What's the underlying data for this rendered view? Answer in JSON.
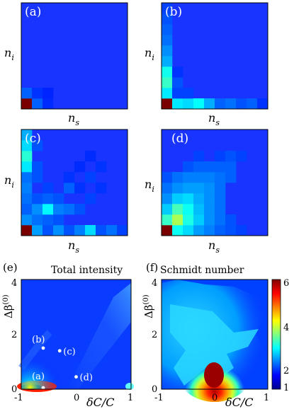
{
  "chart_data": [
    {
      "id": "a",
      "type": "heatmap",
      "tag": "(a)",
      "xlabel": "n",
      "xlabel_sub": "s",
      "ylabel": "n",
      "ylabel_sub": "i",
      "grid_size": 10,
      "cells": [
        {
          "row": 0,
          "col": 0,
          "value": 1.0
        },
        {
          "row": 0,
          "col": 1,
          "value": 0.12
        },
        {
          "row": 1,
          "col": 0,
          "value": 0.12
        },
        {
          "row": 1,
          "col": 1,
          "value": 0.06
        },
        {
          "row": 0,
          "col": 2,
          "value": 0.05
        },
        {
          "row": 1,
          "col": 2,
          "value": 0.04
        }
      ]
    },
    {
      "id": "b",
      "type": "heatmap",
      "tag": "(b)",
      "xlabel": "n",
      "xlabel_sub": "s",
      "ylabel": "n",
      "ylabel_sub": "i",
      "grid_size": 10,
      "cells": [
        {
          "row": 0,
          "col": 0,
          "value": 1.0
        },
        {
          "row": 0,
          "col": 1,
          "value": 0.3
        },
        {
          "row": 0,
          "col": 2,
          "value": 0.28
        },
        {
          "row": 0,
          "col": 3,
          "value": 0.33
        },
        {
          "row": 0,
          "col": 4,
          "value": 0.22
        },
        {
          "row": 0,
          "col": 5,
          "value": 0.12
        },
        {
          "row": 0,
          "col": 6,
          "value": 0.14
        },
        {
          "row": 0,
          "col": 7,
          "value": 0.1
        },
        {
          "row": 0,
          "col": 8,
          "value": 0.12
        },
        {
          "row": 0,
          "col": 9,
          "value": 0.06
        },
        {
          "row": 1,
          "col": 0,
          "value": 0.3
        },
        {
          "row": 2,
          "col": 0,
          "value": 0.4
        },
        {
          "row": 3,
          "col": 0,
          "value": 0.35
        },
        {
          "row": 4,
          "col": 0,
          "value": 0.22
        },
        {
          "row": 5,
          "col": 0,
          "value": 0.18
        },
        {
          "row": 6,
          "col": 0,
          "value": 0.14
        },
        {
          "row": 7,
          "col": 0,
          "value": 0.12
        },
        {
          "row": 8,
          "col": 0,
          "value": 0.1
        },
        {
          "row": 9,
          "col": 0,
          "value": 0.08
        },
        {
          "row": 1,
          "col": 1,
          "value": 0.08
        },
        {
          "row": 2,
          "col": 1,
          "value": 0.1
        },
        {
          "row": 1,
          "col": 2,
          "value": 0.08
        },
        {
          "row": 3,
          "col": 1,
          "value": 0.06
        }
      ]
    },
    {
      "id": "c",
      "type": "heatmap",
      "tag": "(c)",
      "xlabel": "n",
      "xlabel_sub": "s",
      "ylabel": "n",
      "ylabel_sub": "i",
      "grid_size": 10,
      "cells": [
        {
          "row": 0,
          "col": 0,
          "value": 1.0
        },
        {
          "row": 0,
          "col": 1,
          "value": 0.2
        },
        {
          "row": 0,
          "col": 2,
          "value": 0.1
        },
        {
          "row": 0,
          "col": 3,
          "value": 0.18
        },
        {
          "row": 0,
          "col": 4,
          "value": 0.1
        },
        {
          "row": 0,
          "col": 5,
          "value": 0.16
        },
        {
          "row": 0,
          "col": 6,
          "value": 0.28
        },
        {
          "row": 0,
          "col": 7,
          "value": 0.1
        },
        {
          "row": 0,
          "col": 8,
          "value": 0.14
        },
        {
          "row": 0,
          "col": 9,
          "value": 0.08
        },
        {
          "row": 1,
          "col": 0,
          "value": 0.18
        },
        {
          "row": 1,
          "col": 1,
          "value": 0.14
        },
        {
          "row": 1,
          "col": 2,
          "value": 0.12
        },
        {
          "row": 1,
          "col": 3,
          "value": 0.1
        },
        {
          "row": 2,
          "col": 0,
          "value": 0.12
        },
        {
          "row": 2,
          "col": 1,
          "value": 0.18
        },
        {
          "row": 2,
          "col": 2,
          "value": 0.32
        },
        {
          "row": 2,
          "col": 3,
          "value": 0.16
        },
        {
          "row": 2,
          "col": 4,
          "value": 0.14
        },
        {
          "row": 2,
          "col": 5,
          "value": 0.1
        },
        {
          "row": 3,
          "col": 0,
          "value": 0.14
        },
        {
          "row": 3,
          "col": 1,
          "value": 0.1
        },
        {
          "row": 3,
          "col": 2,
          "value": 0.12
        },
        {
          "row": 3,
          "col": 3,
          "value": 0.1
        },
        {
          "row": 4,
          "col": 0,
          "value": 0.16
        },
        {
          "row": 4,
          "col": 2,
          "value": 0.08
        },
        {
          "row": 4,
          "col": 4,
          "value": 0.12
        },
        {
          "row": 4,
          "col": 5,
          "value": 0.06
        },
        {
          "row": 5,
          "col": 0,
          "value": 0.14
        },
        {
          "row": 5,
          "col": 1,
          "value": 0.1
        },
        {
          "row": 5,
          "col": 6,
          "value": 0.08
        },
        {
          "row": 6,
          "col": 0,
          "value": 0.3
        },
        {
          "row": 6,
          "col": 1,
          "value": 0.1
        },
        {
          "row": 6,
          "col": 7,
          "value": 0.06
        },
        {
          "row": 7,
          "col": 0,
          "value": 0.38
        },
        {
          "row": 8,
          "col": 0,
          "value": 0.28
        },
        {
          "row": 8,
          "col": 1,
          "value": 0.1
        },
        {
          "row": 9,
          "col": 0,
          "value": 0.22
        },
        {
          "row": 3,
          "col": 6,
          "value": 0.08
        },
        {
          "row": 5,
          "col": 4,
          "value": 0.06
        },
        {
          "row": 4,
          "col": 7,
          "value": 0.06
        },
        {
          "row": 6,
          "col": 5,
          "value": 0.05
        },
        {
          "row": 7,
          "col": 6,
          "value": 0.05
        }
      ]
    },
    {
      "id": "d",
      "type": "heatmap",
      "tag": "(d)",
      "xlabel": "n",
      "xlabel_sub": "s",
      "ylabel": "n",
      "ylabel_sub": "i",
      "grid_size": 10,
      "cells": [
        {
          "row": 0,
          "col": 0,
          "value": 1.0
        },
        {
          "row": 0,
          "col": 1,
          "value": 0.34
        },
        {
          "row": 0,
          "col": 2,
          "value": 0.28
        },
        {
          "row": 0,
          "col": 3,
          "value": 0.2
        },
        {
          "row": 0,
          "col": 4,
          "value": 0.16
        },
        {
          "row": 0,
          "col": 5,
          "value": 0.12
        },
        {
          "row": 0,
          "col": 6,
          "value": 0.1
        },
        {
          "row": 0,
          "col": 7,
          "value": 0.08
        },
        {
          "row": 1,
          "col": 0,
          "value": 0.4
        },
        {
          "row": 1,
          "col": 1,
          "value": 0.55
        },
        {
          "row": 1,
          "col": 2,
          "value": 0.36
        },
        {
          "row": 1,
          "col": 3,
          "value": 0.26
        },
        {
          "row": 1,
          "col": 4,
          "value": 0.18
        },
        {
          "row": 1,
          "col": 5,
          "value": 0.14
        },
        {
          "row": 1,
          "col": 6,
          "value": 0.1
        },
        {
          "row": 2,
          "col": 0,
          "value": 0.26
        },
        {
          "row": 2,
          "col": 1,
          "value": 0.42
        },
        {
          "row": 2,
          "col": 2,
          "value": 0.34
        },
        {
          "row": 2,
          "col": 3,
          "value": 0.24
        },
        {
          "row": 2,
          "col": 4,
          "value": 0.18
        },
        {
          "row": 2,
          "col": 5,
          "value": 0.14
        },
        {
          "row": 3,
          "col": 0,
          "value": 0.18
        },
        {
          "row": 3,
          "col": 1,
          "value": 0.26
        },
        {
          "row": 3,
          "col": 2,
          "value": 0.28
        },
        {
          "row": 3,
          "col": 3,
          "value": 0.22
        },
        {
          "row": 3,
          "col": 4,
          "value": 0.18
        },
        {
          "row": 3,
          "col": 5,
          "value": 0.14
        },
        {
          "row": 4,
          "col": 0,
          "value": 0.14
        },
        {
          "row": 4,
          "col": 1,
          "value": 0.18
        },
        {
          "row": 4,
          "col": 2,
          "value": 0.2
        },
        {
          "row": 4,
          "col": 3,
          "value": 0.2
        },
        {
          "row": 4,
          "col": 4,
          "value": 0.18
        },
        {
          "row": 4,
          "col": 5,
          "value": 0.14
        },
        {
          "row": 5,
          "col": 0,
          "value": 0.1
        },
        {
          "row": 5,
          "col": 1,
          "value": 0.14
        },
        {
          "row": 5,
          "col": 2,
          "value": 0.16
        },
        {
          "row": 5,
          "col": 3,
          "value": 0.16
        },
        {
          "row": 5,
          "col": 4,
          "value": 0.16
        },
        {
          "row": 5,
          "col": 5,
          "value": 0.14
        },
        {
          "row": 5,
          "col": 6,
          "value": 0.12
        },
        {
          "row": 6,
          "col": 2,
          "value": 0.1
        },
        {
          "row": 6,
          "col": 3,
          "value": 0.12
        },
        {
          "row": 6,
          "col": 4,
          "value": 0.12
        },
        {
          "row": 6,
          "col": 5,
          "value": 0.12
        },
        {
          "row": 6,
          "col": 6,
          "value": 0.12
        },
        {
          "row": 7,
          "col": 3,
          "value": 0.08
        },
        {
          "row": 7,
          "col": 5,
          "value": 0.08
        },
        {
          "row": 7,
          "col": 6,
          "value": 0.1
        },
        {
          "row": 7,
          "col": 7,
          "value": 0.08
        }
      ]
    },
    {
      "id": "e",
      "type": "heatmap",
      "tag": "(e)",
      "title": "Total intensity",
      "xlabel": "δC/C",
      "ylabel": "Δβ",
      "ylabel_sup": "(0)",
      "xlim": [
        -1,
        1
      ],
      "ylim": [
        0,
        4
      ],
      "x_ticks": [
        -1,
        0,
        1
      ],
      "y_ticks": [
        0,
        2,
        4
      ],
      "points": [
        {
          "label": "(a)",
          "x": -0.6,
          "y": 0.05
        },
        {
          "label": "(b)",
          "x": -0.6,
          "y": 1.5
        },
        {
          "label": "(c)",
          "x": -0.3,
          "y": 1.4
        },
        {
          "label": "(d)",
          "x": 0.0,
          "y": 0.45
        }
      ]
    },
    {
      "id": "f",
      "type": "heatmap",
      "tag": "(f)",
      "title": "Schmidt number",
      "xlabel": "δC/C",
      "ylabel": "Δβ",
      "ylabel_sup": "(0)",
      "xlim": [
        -1,
        1
      ],
      "ylim": [
        0,
        4
      ],
      "x_ticks": [
        -1,
        0,
        1
      ],
      "y_ticks": [
        0,
        2,
        4
      ],
      "colorbar": {
        "min": 1,
        "max": 6,
        "ticks": [
          1,
          2,
          4,
          6
        ]
      }
    }
  ]
}
